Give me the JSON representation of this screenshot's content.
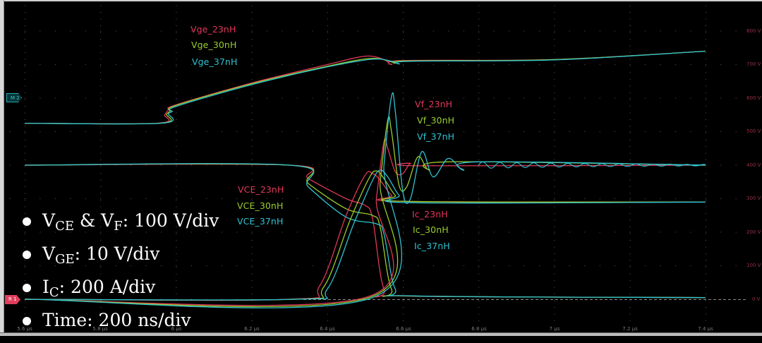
{
  "chart_data": {
    "type": "line",
    "title": "",
    "xlabel": "Time",
    "ylabel": "Voltage / Current",
    "x_unit": "µs",
    "xlim": [
      5.6,
      7.4
    ],
    "x_ticks": [
      "5.6 µs",
      "5.8 µs",
      "6 µs",
      "6.2 µs",
      "6.4 µs",
      "6.6 µs",
      "6.8 µs",
      "7 µs",
      "7.2 µs",
      "7.4 µs"
    ],
    "y_ticks_right": [
      "800 V",
      "700 V",
      "600 V",
      "500 V",
      "400 V",
      "300 V",
      "200 V",
      "100 V",
      "0 V"
    ],
    "ylim_display_V": [
      0,
      800
    ],
    "grid": true,
    "scales": {
      "VCE_VF": "100 V/div",
      "VGE": "10 V/div",
      "IC": "200 A/div",
      "time": "200 ns/div"
    },
    "colors": {
      "23nH": "#e0385a",
      "30nH": "#9ccc2a",
      "37nH": "#2ec3d2"
    },
    "series": [
      {
        "name": "Vge_23nH",
        "group": "Vge",
        "color": "#e0385a",
        "x": [
          5.6,
          5.95,
          5.97,
          5.98,
          6.0,
          6.2,
          6.4,
          6.5,
          6.55,
          6.57,
          6.6,
          7.0,
          7.4
        ],
        "y_display_V": [
          525,
          525,
          550,
          565,
          580,
          645,
          700,
          725,
          715,
          700,
          712,
          715,
          740
        ]
      },
      {
        "name": "Vge_30nH",
        "group": "Vge",
        "color": "#9ccc2a",
        "x": [
          5.6,
          5.955,
          5.975,
          5.985,
          6.0,
          6.2,
          6.4,
          6.51,
          6.56,
          6.58,
          6.61,
          7.0,
          7.4
        ],
        "y_display_V": [
          525,
          525,
          552,
          562,
          578,
          643,
          695,
          718,
          712,
          704,
          711,
          715,
          740
        ]
      },
      {
        "name": "Vge_37nH",
        "group": "Vge",
        "color": "#2ec3d2",
        "x": [
          5.6,
          5.96,
          5.98,
          5.99,
          6.0,
          6.2,
          6.4,
          6.52,
          6.57,
          6.59,
          6.62,
          7.0,
          7.4
        ],
        "y_display_V": [
          525,
          525,
          554,
          560,
          575,
          640,
          693,
          716,
          710,
          702,
          710,
          714,
          740
        ]
      },
      {
        "name": "VCE_23nH",
        "group": "VCE",
        "color": "#e0385a",
        "x": [
          5.6,
          6.3,
          6.35,
          6.45,
          6.5,
          6.52,
          6.55,
          6.6,
          7.4
        ],
        "y_display_V": [
          400,
          400,
          360,
          300,
          280,
          240,
          30,
          10,
          5
        ]
      },
      {
        "name": "VCE_30nH",
        "group": "VCE",
        "color": "#9ccc2a",
        "x": [
          5.6,
          6.3,
          6.35,
          6.45,
          6.52,
          6.54,
          6.57,
          6.62,
          7.4
        ],
        "y_display_V": [
          400,
          400,
          345,
          270,
          250,
          215,
          30,
          10,
          5
        ]
      },
      {
        "name": "VCE_37nH",
        "group": "VCE",
        "color": "#2ec3d2",
        "x": [
          5.6,
          6.3,
          6.35,
          6.45,
          6.53,
          6.55,
          6.58,
          6.63,
          7.4
        ],
        "y_display_V": [
          400,
          400,
          335,
          245,
          225,
          195,
          30,
          10,
          5
        ]
      },
      {
        "name": "Ic_23nH",
        "group": "Ic",
        "color": "#e0385a",
        "x": [
          5.6,
          6.3,
          6.38,
          6.45,
          6.5,
          6.52,
          6.54,
          6.57,
          6.6,
          7.4
        ],
        "y_display_V": [
          0,
          0,
          40,
          250,
          370,
          375,
          355,
          310,
          292,
          290
        ]
      },
      {
        "name": "Ic_30nH",
        "group": "Ic",
        "color": "#9ccc2a",
        "x": [
          5.6,
          6.31,
          6.39,
          6.46,
          6.51,
          6.53,
          6.55,
          6.58,
          6.61,
          7.4
        ],
        "y_display_V": [
          0,
          0,
          35,
          235,
          360,
          383,
          360,
          310,
          292,
          290
        ]
      },
      {
        "name": "Ic_37nH",
        "group": "Ic",
        "color": "#2ec3d2",
        "x": [
          5.6,
          6.32,
          6.4,
          6.47,
          6.52,
          6.54,
          6.56,
          6.59,
          6.62,
          7.4
        ],
        "y_display_V": [
          0,
          0,
          30,
          225,
          355,
          385,
          365,
          310,
          288,
          290
        ]
      },
      {
        "name": "Vf_23nH",
        "group": "Vf",
        "color": "#e0385a",
        "x": [
          5.6,
          6.5,
          6.53,
          6.55,
          6.56,
          6.58,
          6.6,
          6.62,
          6.65,
          7.4
        ],
        "y_display_V": [
          0,
          5,
          300,
          470,
          450,
          380,
          375,
          405,
          398,
          400
        ]
      },
      {
        "name": "Vf_30nH",
        "group": "Vf",
        "color": "#9ccc2a",
        "x": [
          5.6,
          6.51,
          6.54,
          6.56,
          6.57,
          6.59,
          6.61,
          6.64,
          6.67,
          6.72,
          7.4
        ],
        "y_display_V": [
          0,
          5,
          350,
          535,
          500,
          340,
          335,
          425,
          385,
          410,
          400
        ]
      },
      {
        "name": "Vf_37nH",
        "group": "Vf",
        "color": "#2ec3d2",
        "x": [
          5.6,
          6.52,
          6.55,
          6.57,
          6.58,
          6.6,
          6.62,
          6.65,
          6.68,
          6.72,
          6.76,
          6.8,
          7.4
        ],
        "y_display_V": [
          0,
          5,
          400,
          605,
          560,
          320,
          300,
          440,
          365,
          420,
          385,
          410,
          400
        ]
      }
    ],
    "annotations": [
      "Vge_23nH",
      "Vge_30nH",
      "Vge_37nH",
      "Vf_23nH",
      "Vf_30nH",
      "Vf_37nH",
      "VCE_23nH",
      "VCE_30nH",
      "VCE_37nH",
      "Ic_23nH",
      "Ic_30nH",
      "Ic_37nH"
    ],
    "legend_position": "bottom-left"
  },
  "markers": {
    "m2": "M 2",
    "r1": "R 1"
  },
  "trace_labels": {
    "vge": [
      "Vge_23nH",
      "Vge_30nH",
      "Vge_37nH"
    ],
    "vf": [
      "Vf_23nH",
      "Vf_30nH",
      "Vf_37nH"
    ],
    "vce": [
      "VCE_23nH",
      "VCE_30nH",
      "VCE_37nH"
    ],
    "ic": [
      "Ic_23nH",
      "Ic_30nH",
      "Ic_37nH"
    ]
  },
  "y_axis_labels": [
    "800 V",
    "700 V",
    "600 V",
    "500 V",
    "400 V",
    "300 V",
    "200 V",
    "100 V",
    "0 V"
  ],
  "x_axis_labels": [
    "5.6 µs",
    "5.8 µs",
    "6 µs",
    "6.2 µs",
    "6.4 µs",
    "6.6 µs",
    "6.8 µs",
    "7 µs",
    "7.2 µs",
    "7.4 µs"
  ],
  "scale_legend": [
    {
      "main": "V",
      "sub": "CE",
      "mid": " & V",
      "sub2": "F",
      "rest": ": 100 V/div"
    },
    {
      "main": "V",
      "sub": "GE",
      "rest": ": 10 V/div"
    },
    {
      "main": "I",
      "sub": "C",
      "rest": ": 200 A/div"
    },
    {
      "main": "Time: 200 ns/div"
    }
  ]
}
